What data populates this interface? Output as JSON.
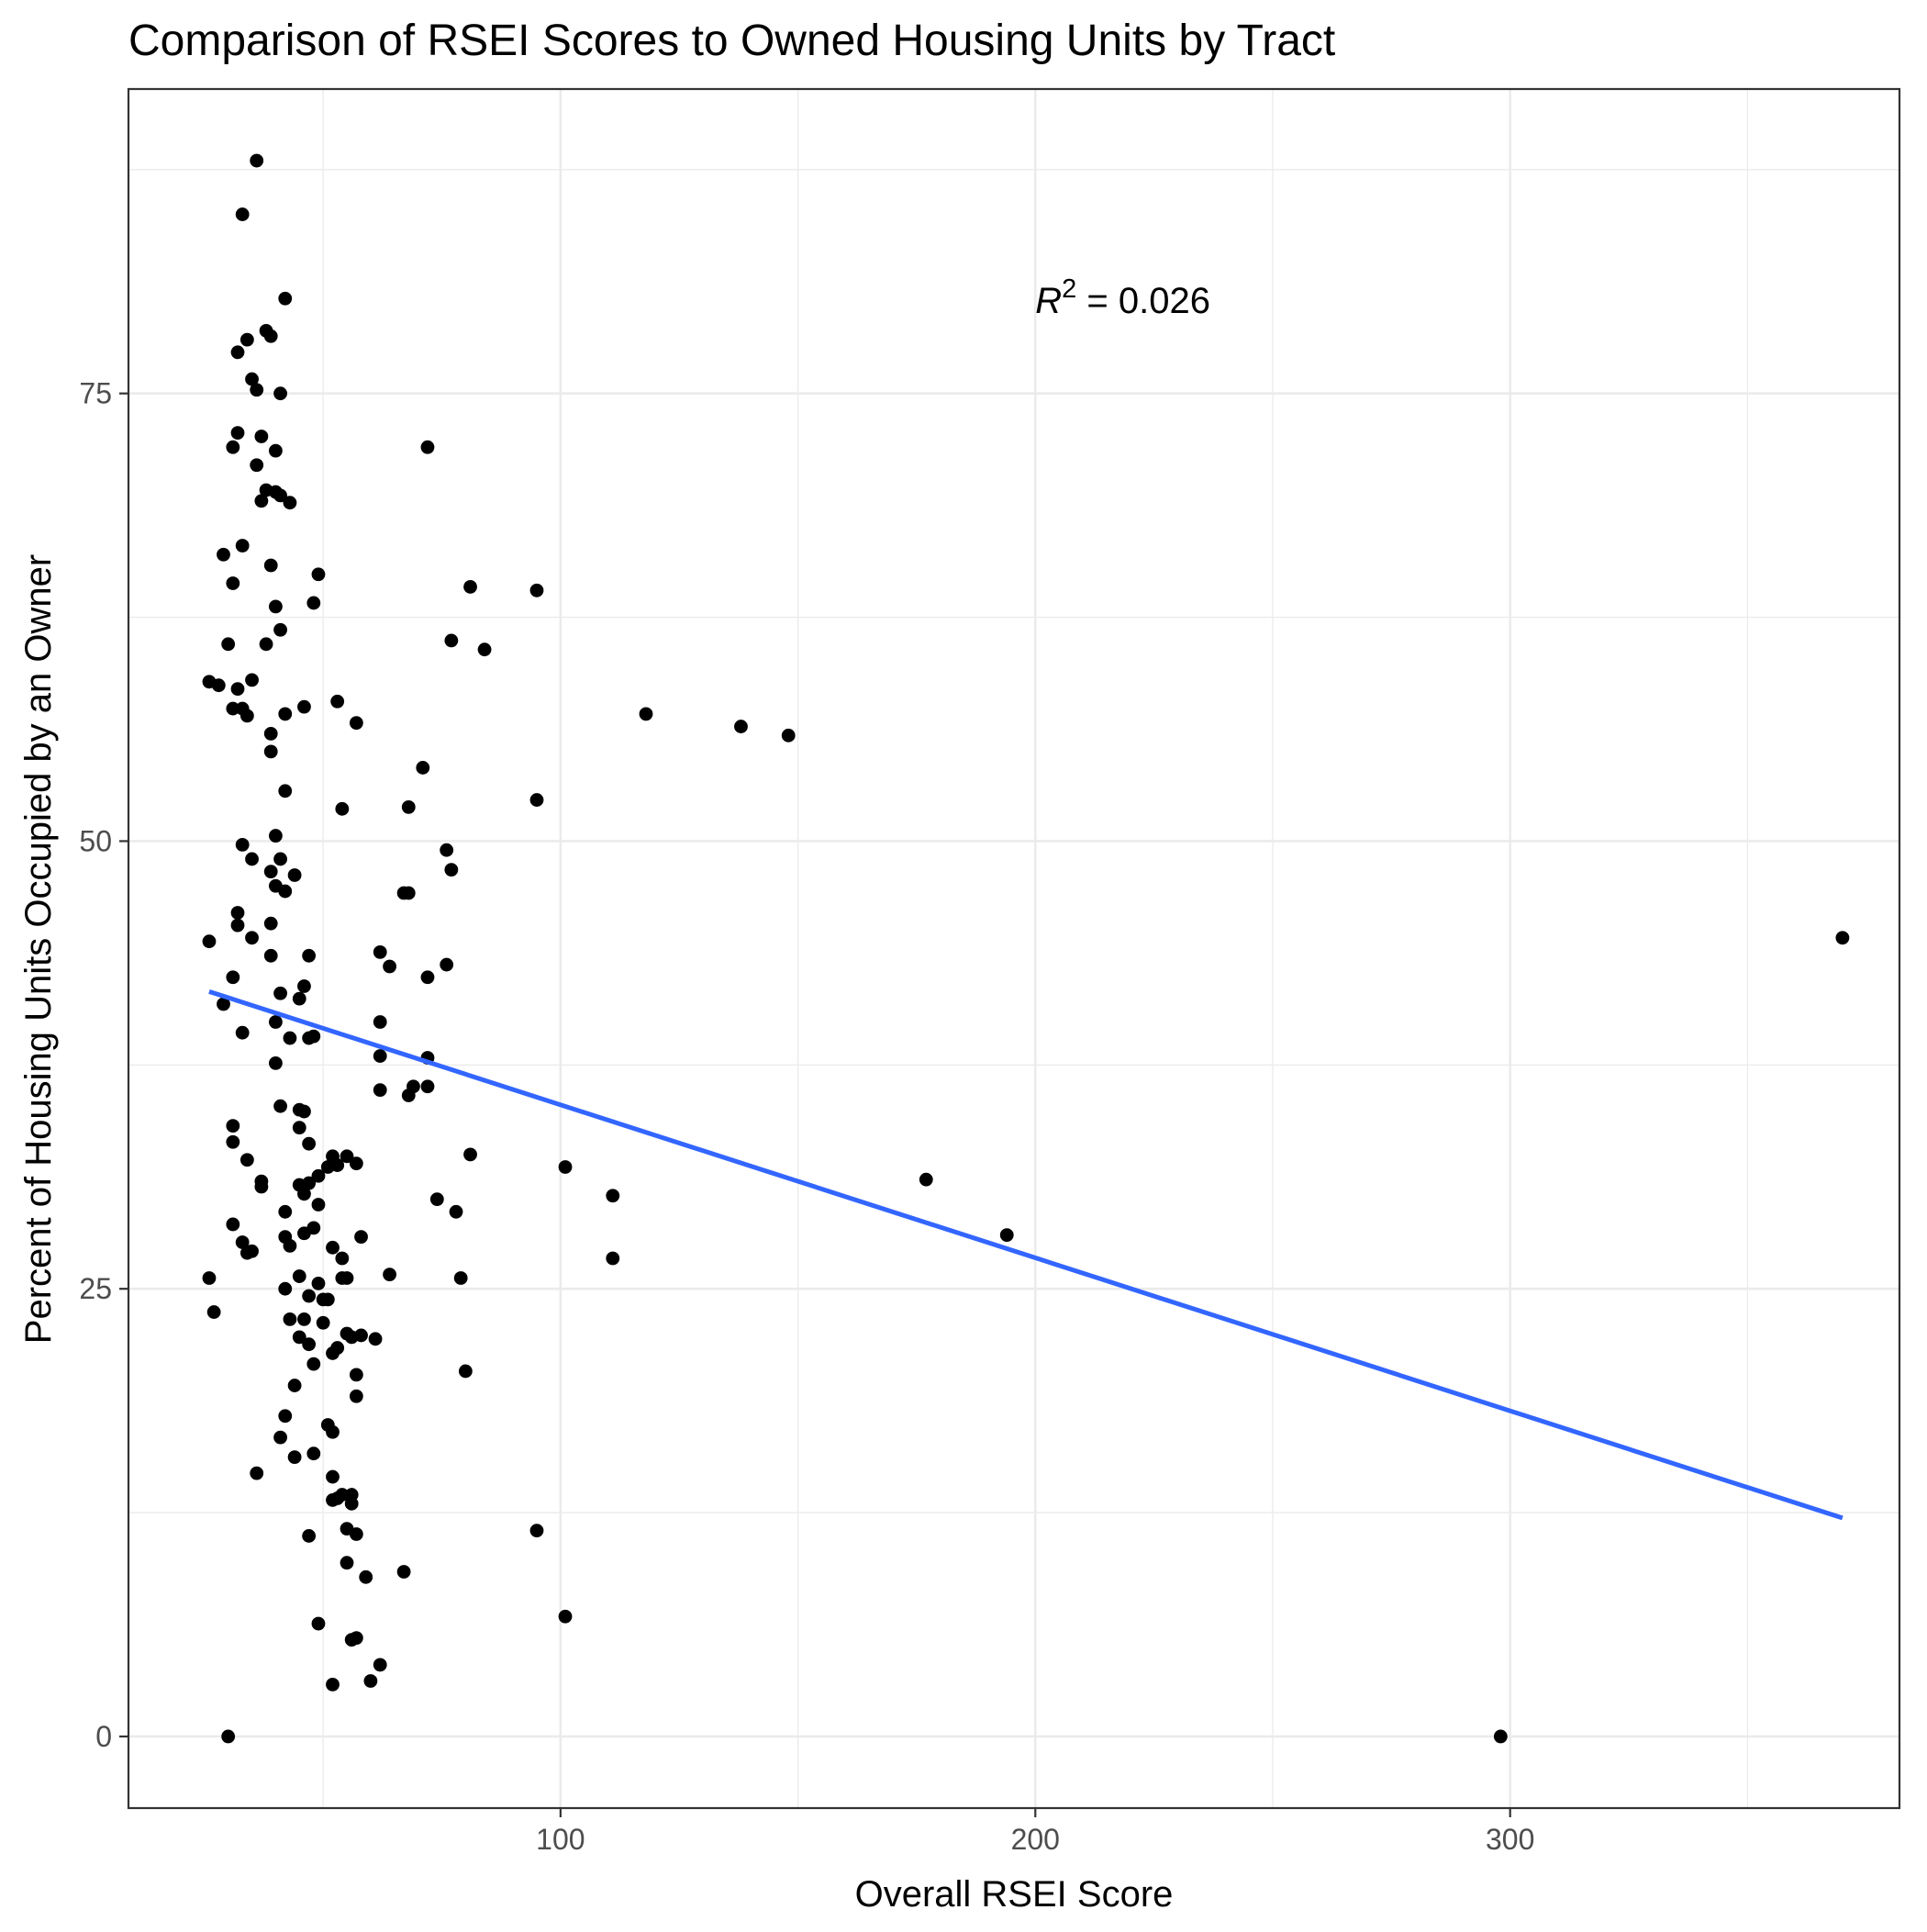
{
  "chart_data": {
    "type": "scatter",
    "title": "Comparison of RSEI Scores to Owned Housing Units by Tract",
    "xlabel": "Overall RSEI Score",
    "ylabel": "Percent of Housing Units Occupied by an Owner",
    "xlim": [
      9,
      382
    ],
    "ylim": [
      -4,
      92
    ],
    "x_major_ticks": [
      100,
      200,
      300
    ],
    "x_minor_ticks": [
      50,
      150,
      250,
      350
    ],
    "y_major_ticks": [
      0,
      25,
      50,
      75
    ],
    "y_minor_ticks": [
      12.5,
      37.5,
      62.5,
      87.5
    ],
    "grid": true,
    "annotation": {
      "var": "R",
      "sup": "2",
      "rest": " = 0.026",
      "x": 200,
      "y": 79.5
    },
    "regression": {
      "x": [
        26,
        370
      ],
      "y": [
        41.6,
        12.2
      ],
      "color": "#3366FF"
    },
    "point_color": "#000000",
    "points": [
      [
        36,
        88
      ],
      [
        33,
        85
      ],
      [
        42,
        80.3
      ],
      [
        34,
        78
      ],
      [
        38,
        78.5
      ],
      [
        39,
        78.2
      ],
      [
        32,
        77.3
      ],
      [
        35,
        75.8
      ],
      [
        36,
        75.2
      ],
      [
        41,
        75
      ],
      [
        32,
        72.8
      ],
      [
        37,
        72.6
      ],
      [
        31,
        72
      ],
      [
        40,
        71.8
      ],
      [
        36,
        71
      ],
      [
        38,
        69.6
      ],
      [
        40,
        69.5
      ],
      [
        41,
        69.3
      ],
      [
        37,
        69
      ],
      [
        43,
        68.9
      ],
      [
        33,
        66.5
      ],
      [
        29,
        66
      ],
      [
        39,
        65.4
      ],
      [
        31,
        64.4
      ],
      [
        49,
        64.9
      ],
      [
        48,
        63.3
      ],
      [
        40,
        63.1
      ],
      [
        41,
        61.8
      ],
      [
        38,
        61
      ],
      [
        30,
        61
      ],
      [
        26,
        58.9
      ],
      [
        28,
        58.7
      ],
      [
        35,
        59
      ],
      [
        32,
        58.5
      ],
      [
        31,
        57.4
      ],
      [
        33,
        57.4
      ],
      [
        34,
        57
      ],
      [
        42,
        57.1
      ],
      [
        46,
        57.5
      ],
      [
        53,
        57.8
      ],
      [
        57,
        56.6
      ],
      [
        39,
        56
      ],
      [
        39,
        55
      ],
      [
        42,
        52.8
      ],
      [
        54,
        51.8
      ],
      [
        68,
        51.9
      ],
      [
        71,
        54.1
      ],
      [
        40,
        50.3
      ],
      [
        33,
        49.8
      ],
      [
        35,
        49
      ],
      [
        41,
        49
      ],
      [
        76,
        49.5
      ],
      [
        77,
        48.4
      ],
      [
        39,
        48.3
      ],
      [
        44,
        48.1
      ],
      [
        40,
        47.5
      ],
      [
        42,
        47.2
      ],
      [
        67,
        47.1
      ],
      [
        68,
        47.1
      ],
      [
        32,
        46
      ],
      [
        32,
        45.3
      ],
      [
        35,
        44.6
      ],
      [
        39,
        45.4
      ],
      [
        26,
        44.4
      ],
      [
        39,
        43.6
      ],
      [
        47,
        43.6
      ],
      [
        62,
        43.8
      ],
      [
        64,
        43
      ],
      [
        76,
        43.1
      ],
      [
        72,
        42.4
      ],
      [
        31,
        42.4
      ],
      [
        46,
        41.9
      ],
      [
        41,
        41.5
      ],
      [
        45,
        41.2
      ],
      [
        29,
        40.9
      ],
      [
        40,
        39.9
      ],
      [
        62,
        39.9
      ],
      [
        33,
        39.3
      ],
      [
        43,
        39
      ],
      [
        47,
        39
      ],
      [
        48,
        39.1
      ],
      [
        62,
        38
      ],
      [
        72,
        37.9
      ],
      [
        40,
        37.6
      ],
      [
        72,
        36.3
      ],
      [
        62,
        36.1
      ],
      [
        69,
        36.3
      ],
      [
        68,
        35.8
      ],
      [
        41,
        35.2
      ],
      [
        45,
        35
      ],
      [
        46,
        34.9
      ],
      [
        31,
        34.1
      ],
      [
        45,
        34
      ],
      [
        31,
        33.2
      ],
      [
        47,
        33.1
      ],
      [
        34,
        32.2
      ],
      [
        52,
        32.4
      ],
      [
        55,
        32.4
      ],
      [
        51,
        31.8
      ],
      [
        53,
        31.9
      ],
      [
        57,
        32
      ],
      [
        81,
        32.5
      ],
      [
        101,
        31.8
      ],
      [
        177,
        31.1
      ],
      [
        37,
        31
      ],
      [
        37,
        30.7
      ],
      [
        45,
        30.8
      ],
      [
        47,
        30.9
      ],
      [
        49,
        31.3
      ],
      [
        74,
        30
      ],
      [
        46,
        30.3
      ],
      [
        49,
        29.7
      ],
      [
        42,
        29.3
      ],
      [
        111,
        30.2
      ],
      [
        78,
        29.3
      ],
      [
        31,
        28.6
      ],
      [
        48,
        28.4
      ],
      [
        42,
        27.9
      ],
      [
        46,
        28.1
      ],
      [
        58,
        27.9
      ],
      [
        194,
        28
      ],
      [
        33,
        27.6
      ],
      [
        34,
        27
      ],
      [
        35,
        27.1
      ],
      [
        43,
        27.4
      ],
      [
        52,
        27.3
      ],
      [
        54,
        26.7
      ],
      [
        111,
        26.7
      ],
      [
        26,
        25.6
      ],
      [
        45,
        25.7
      ],
      [
        54,
        25.6
      ],
      [
        55,
        25.6
      ],
      [
        64,
        25.8
      ],
      [
        79,
        25.6
      ],
      [
        49,
        25.3
      ],
      [
        42,
        25
      ],
      [
        47,
        24.6
      ],
      [
        50,
        24.4
      ],
      [
        51,
        24.4
      ],
      [
        27,
        23.7
      ],
      [
        43,
        23.3
      ],
      [
        46,
        23.3
      ],
      [
        50,
        23.1
      ],
      [
        45,
        22.3
      ],
      [
        55,
        22.5
      ],
      [
        56,
        22.3
      ],
      [
        58,
        22.4
      ],
      [
        61,
        22.2
      ],
      [
        47,
        21.9
      ],
      [
        52,
        21.4
      ],
      [
        53,
        21.7
      ],
      [
        48,
        20.8
      ],
      [
        57,
        20.2
      ],
      [
        80,
        20.4
      ],
      [
        44,
        19.6
      ],
      [
        57,
        19
      ],
      [
        42,
        17.9
      ],
      [
        51,
        17.4
      ],
      [
        52,
        17
      ],
      [
        41,
        16.7
      ],
      [
        48,
        15.8
      ],
      [
        44,
        15.6
      ],
      [
        52,
        14.5
      ],
      [
        36,
        14.7
      ],
      [
        53,
        13.3
      ],
      [
        54,
        13.5
      ],
      [
        56,
        13.5
      ],
      [
        52,
        13.2
      ],
      [
        56,
        13
      ],
      [
        55,
        11.6
      ],
      [
        57,
        11.3
      ],
      [
        47,
        11.2
      ],
      [
        95,
        11.5
      ],
      [
        55,
        9.7
      ],
      [
        59,
        8.9
      ],
      [
        67,
        9.2
      ],
      [
        101,
        6.7
      ],
      [
        49,
        6.3
      ],
      [
        56,
        5.4
      ],
      [
        57,
        5.5
      ],
      [
        62,
        4
      ],
      [
        52,
        2.9
      ],
      [
        60,
        3.1
      ],
      [
        30,
        0
      ],
      [
        298,
        0
      ],
      [
        370,
        44.6
      ],
      [
        118,
        57.1
      ],
      [
        138,
        56.4
      ],
      [
        148,
        55.9
      ],
      [
        95,
        64
      ],
      [
        95,
        52.3
      ],
      [
        81,
        64.2
      ],
      [
        77,
        61.2
      ],
      [
        84,
        60.7
      ],
      [
        72,
        72
      ]
    ]
  }
}
